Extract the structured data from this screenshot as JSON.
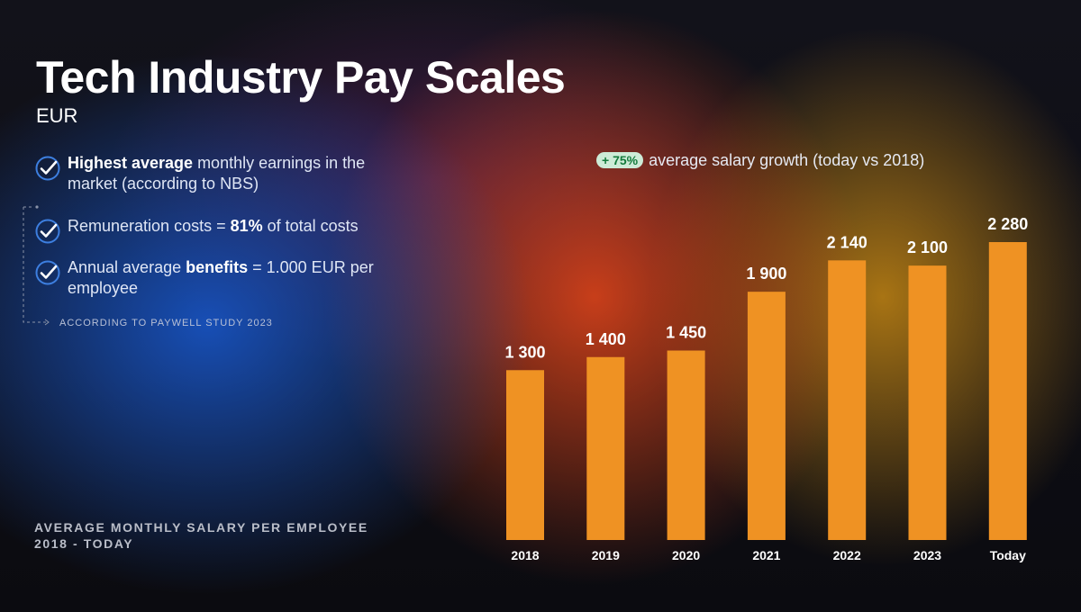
{
  "header": {
    "title": "Tech Industry Pay Scales",
    "currency": "EUR"
  },
  "facts": [
    {
      "parts": [
        {
          "t": "Highest average",
          "b": true
        },
        {
          "t": " monthly earnings in the market (according to NBS)",
          "b": false
        }
      ]
    },
    {
      "parts": [
        {
          "t": "Remuneration costs = ",
          "b": false
        },
        {
          "t": "81%",
          "b": true
        },
        {
          "t": " of total costs",
          "b": false
        }
      ]
    },
    {
      "parts": [
        {
          "t": "Annual average ",
          "b": false
        },
        {
          "t": "benefits",
          "b": true
        },
        {
          "t": " = 1.000 EUR per employee",
          "b": false
        }
      ]
    }
  ],
  "source_note": "ACCORDING TO PAYWELL STUDY 2023",
  "caption": {
    "line1": "AVERAGE MONTHLY SALARY PER EMPLOYEE",
    "line2": "2018 - TODAY"
  },
  "growth": {
    "badge": "+ 75%",
    "text": "average salary growth (today vs 2018)"
  },
  "colors": {
    "bar": "#ef9223",
    "check": "#3d7fe0",
    "badge_bg": "#cdebd7",
    "badge_text": "#127a3b"
  },
  "icons": {
    "fact_bullet": "check-circle-icon"
  },
  "chart_data": {
    "type": "bar",
    "categories": [
      "2018",
      "2019",
      "2020",
      "2021",
      "2022",
      "2023",
      "Today"
    ],
    "values": [
      1300,
      1400,
      1450,
      1900,
      2140,
      2100,
      2280
    ],
    "value_labels": [
      "1 300",
      "1 400",
      "1 450",
      "1 900",
      "2 140",
      "2 100",
      "2 280"
    ],
    "ylim": [
      0,
      2280
    ],
    "grid": false,
    "legend": "none"
  }
}
